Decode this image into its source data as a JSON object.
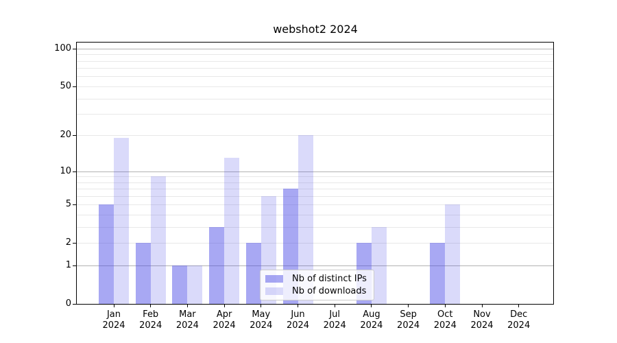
{
  "chart_data": {
    "type": "bar",
    "title": "webshot2 2024",
    "categories": [
      "Jan 2024",
      "Feb 2024",
      "Mar 2024",
      "Apr 2024",
      "May 2024",
      "Jun 2024",
      "Jul 2024",
      "Aug 2024",
      "Sep 2024",
      "Oct 2024",
      "Nov 2024",
      "Dec 2024"
    ],
    "series": [
      {
        "name": "Nb of distinct IPs",
        "color": "rgba(70,70,230,0.47)",
        "solid_color": "#a8a8f3",
        "values": [
          5,
          2,
          1,
          3,
          2,
          7,
          0,
          2,
          0,
          2,
          0,
          0
        ]
      },
      {
        "name": "Nb of downloads",
        "color": "rgba(70,70,230,0.20)",
        "solid_color": "#dadafa",
        "values": [
          19,
          9,
          1,
          13,
          6,
          20,
          0,
          3,
          0,
          5,
          0,
          0
        ]
      }
    ],
    "xlabel": "",
    "ylabel": "",
    "yticks": [
      0,
      1,
      2,
      5,
      10,
      20,
      50,
      100
    ],
    "yscale": "log10(value+1)",
    "ylim": [
      0,
      112
    ],
    "grid": {
      "major": [
        1,
        10,
        100
      ],
      "minor": [
        2,
        3,
        4,
        5,
        6,
        7,
        8,
        9,
        20,
        30,
        40,
        50,
        60,
        70,
        80,
        90
      ],
      "major_color": "#b2b2b2",
      "minor_color": "#e8e8e8"
    },
    "legend_position": "lower-center"
  }
}
